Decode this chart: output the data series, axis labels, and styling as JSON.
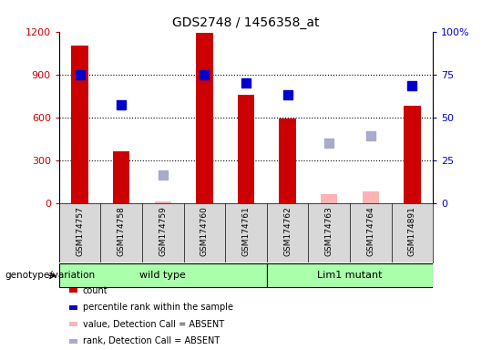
{
  "title": "GDS2748 / 1456358_at",
  "samples": [
    "GSM174757",
    "GSM174758",
    "GSM174759",
    "GSM174760",
    "GSM174761",
    "GSM174762",
    "GSM174763",
    "GSM174764",
    "GSM174891"
  ],
  "count_values": [
    1100,
    360,
    null,
    1190,
    760,
    590,
    null,
    null,
    680
  ],
  "count_absent_values": [
    null,
    null,
    10,
    null,
    null,
    null,
    60,
    80,
    null
  ],
  "percentile_values": [
    900,
    690,
    null,
    895,
    840,
    760,
    null,
    null,
    820
  ],
  "percentile_absent_values": [
    null,
    null,
    195,
    null,
    null,
    null,
    420,
    470,
    null
  ],
  "genotype_groups": [
    {
      "label": "wild type",
      "start": 0,
      "end": 5
    },
    {
      "label": "Lim1 mutant",
      "start": 5,
      "end": 9
    }
  ],
  "ylim_left": [
    0,
    1200
  ],
  "ylim_right": [
    0,
    100
  ],
  "yticks_left": [
    0,
    300,
    600,
    900,
    1200
  ],
  "yticks_right": [
    0,
    25,
    50,
    75,
    100
  ],
  "left_tick_labels": [
    "0",
    "300",
    "600",
    "900",
    "1200"
  ],
  "right_tick_labels": [
    "0",
    "25",
    "50",
    "75",
    "100%"
  ],
  "bar_color": "#cc0000",
  "bar_absent_color": "#ffb3b3",
  "dot_color": "#0000cc",
  "dot_absent_color": "#aaaacc",
  "legend_items": [
    {
      "label": "count",
      "color": "#cc0000"
    },
    {
      "label": "percentile rank within the sample",
      "color": "#0000cc"
    },
    {
      "label": "value, Detection Call = ABSENT",
      "color": "#ffb3b3"
    },
    {
      "label": "rank, Detection Call = ABSENT",
      "color": "#aaaacc"
    }
  ],
  "genotype_label": "genotype/variation",
  "group_bg_color": "#aaffaa",
  "sample_bg_color": "#d8d8d8",
  "bar_width": 0.4,
  "dot_size": 55
}
